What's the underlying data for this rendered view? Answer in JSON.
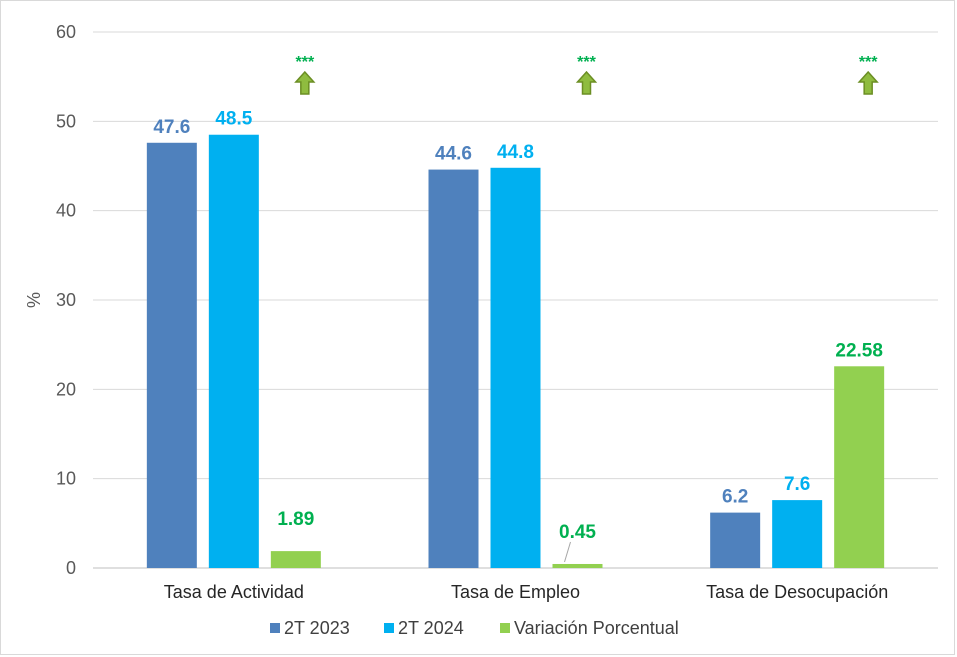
{
  "chart_data": {
    "type": "bar",
    "categories": [
      "Tasa de Actividad",
      "Tasa de Empleo",
      "Tasa de Desocupación"
    ],
    "series": [
      {
        "name": "2T 2023",
        "color": "#4f81bd",
        "label_color": "#4f81bd",
        "values": [
          47.6,
          44.6,
          6.2
        ],
        "labels": [
          "47.6",
          "44.6",
          "6.2"
        ]
      },
      {
        "name": "2T 2024",
        "color": "#00b0f0",
        "label_color": "#00b0f0",
        "values": [
          48.5,
          44.8,
          7.6
        ],
        "labels": [
          "48.5",
          "44.8",
          "7.6"
        ]
      },
      {
        "name": "Variación Porcentual",
        "color": "#92d050",
        "label_color": "#00b050",
        "values": [
          1.89,
          0.45,
          22.58
        ],
        "labels": [
          "1.89",
          "0.45",
          "22.58"
        ]
      }
    ],
    "ylabel": "%",
    "ylim": [
      0,
      60
    ],
    "yticks": [
      0,
      10,
      20,
      30,
      40,
      50,
      60
    ],
    "grid": true,
    "legend_position": "bottom",
    "significance": {
      "text": [
        "***",
        "***",
        "***"
      ],
      "icon": "up-arrow-icon",
      "text_color": "#00b050",
      "arrow_color": "#6b8e23"
    }
  }
}
